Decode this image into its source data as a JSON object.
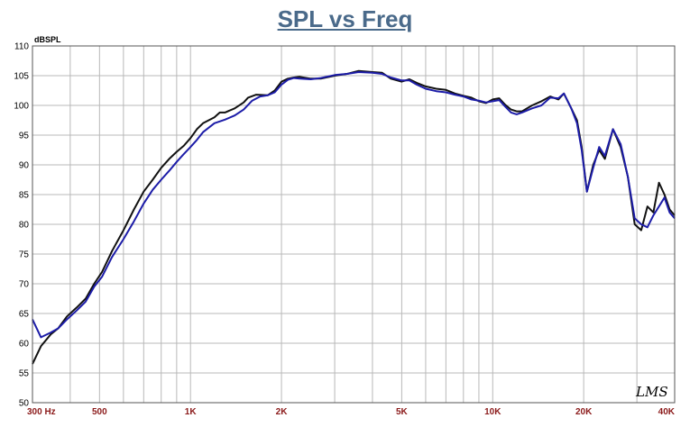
{
  "chart_data": {
    "type": "line",
    "title": "SPL vs Freq",
    "ylabel": "dBSPL",
    "xlabel": "",
    "x_scale": "log",
    "xlim": [
      300,
      40000
    ],
    "ylim": [
      50,
      110
    ],
    "grid": true,
    "yticks": [
      50,
      55,
      60,
      65,
      70,
      75,
      80,
      85,
      90,
      95,
      100,
      105,
      110
    ],
    "xtick_labels": [
      {
        "value": 300,
        "label": "300  Hz"
      },
      {
        "value": 500,
        "label": "500"
      },
      {
        "value": 1000,
        "label": "1K"
      },
      {
        "value": 2000,
        "label": "2K"
      },
      {
        "value": 5000,
        "label": "5K"
      },
      {
        "value": 10000,
        "label": "10K"
      },
      {
        "value": 20000,
        "label": "20K"
      },
      {
        "value": 40000,
        "label": "40K"
      }
    ],
    "watermark": "LMS",
    "series": [
      {
        "color": "#111111",
        "points": [
          [
            300,
            56.5
          ],
          [
            320,
            59.5
          ],
          [
            345,
            61.5
          ],
          [
            365,
            62.5
          ],
          [
            390,
            64.5
          ],
          [
            420,
            66
          ],
          [
            450,
            67.5
          ],
          [
            480,
            70
          ],
          [
            510,
            72
          ],
          [
            550,
            75.5
          ],
          [
            600,
            79
          ],
          [
            650,
            82.5
          ],
          [
            700,
            85.5
          ],
          [
            750,
            87.5
          ],
          [
            800,
            89.5
          ],
          [
            850,
            91
          ],
          [
            900,
            92.2
          ],
          [
            950,
            93.2
          ],
          [
            1000,
            94.5
          ],
          [
            1050,
            96
          ],
          [
            1100,
            97
          ],
          [
            1200,
            98
          ],
          [
            1250,
            98.8
          ],
          [
            1300,
            98.8
          ],
          [
            1400,
            99.5
          ],
          [
            1500,
            100.5
          ],
          [
            1550,
            101.3
          ],
          [
            1650,
            101.8
          ],
          [
            1800,
            101.7
          ],
          [
            1900,
            102.5
          ],
          [
            2000,
            104
          ],
          [
            2100,
            104.5
          ],
          [
            2200,
            104.7
          ],
          [
            2300,
            104.8
          ],
          [
            2500,
            104.5
          ],
          [
            2700,
            104.5
          ],
          [
            3000,
            105
          ],
          [
            3300,
            105.3
          ],
          [
            3600,
            105.8
          ],
          [
            4000,
            105.6
          ],
          [
            4300,
            105.5
          ],
          [
            4600,
            104.5
          ],
          [
            5000,
            104
          ],
          [
            5300,
            104.4
          ],
          [
            5600,
            103.8
          ],
          [
            6000,
            103.2
          ],
          [
            6500,
            102.8
          ],
          [
            7000,
            102.6
          ],
          [
            7500,
            102
          ],
          [
            8000,
            101.6
          ],
          [
            8500,
            101.3
          ],
          [
            9000,
            100.7
          ],
          [
            9500,
            100.4
          ],
          [
            10000,
            101
          ],
          [
            10500,
            101.2
          ],
          [
            11000,
            100.1
          ],
          [
            11500,
            99.3
          ],
          [
            12000,
            99
          ],
          [
            12500,
            99
          ],
          [
            13500,
            100
          ],
          [
            14500,
            100.7
          ],
          [
            15500,
            101.5
          ],
          [
            16500,
            101
          ],
          [
            17200,
            102
          ],
          [
            18200,
            99.5
          ],
          [
            19000,
            97.5
          ],
          [
            19700,
            93
          ],
          [
            20500,
            85.5
          ],
          [
            21500,
            90
          ],
          [
            22500,
            92.5
          ],
          [
            23500,
            91
          ],
          [
            25000,
            96
          ],
          [
            26500,
            93
          ],
          [
            28000,
            88
          ],
          [
            29500,
            80
          ],
          [
            31000,
            79
          ],
          [
            32500,
            83
          ],
          [
            34000,
            82
          ],
          [
            35500,
            87
          ],
          [
            37000,
            85
          ],
          [
            38500,
            82.5
          ],
          [
            40000,
            81.5
          ]
        ]
      },
      {
        "color": "#1c1ca8",
        "points": [
          [
            300,
            64
          ],
          [
            320,
            61
          ],
          [
            345,
            61.8
          ],
          [
            365,
            62.5
          ],
          [
            390,
            64
          ],
          [
            420,
            65.5
          ],
          [
            450,
            67
          ],
          [
            480,
            69.5
          ],
          [
            510,
            71.2
          ],
          [
            550,
            74.5
          ],
          [
            600,
            77.5
          ],
          [
            650,
            80.5
          ],
          [
            700,
            83.5
          ],
          [
            750,
            85.8
          ],
          [
            800,
            87.5
          ],
          [
            850,
            89
          ],
          [
            900,
            90.5
          ],
          [
            950,
            91.8
          ],
          [
            1000,
            93
          ],
          [
            1050,
            94.2
          ],
          [
            1100,
            95.5
          ],
          [
            1200,
            97
          ],
          [
            1300,
            97.6
          ],
          [
            1400,
            98.3
          ],
          [
            1500,
            99.3
          ],
          [
            1600,
            100.8
          ],
          [
            1700,
            101.5
          ],
          [
            1800,
            101.7
          ],
          [
            1900,
            102.2
          ],
          [
            2000,
            103.5
          ],
          [
            2100,
            104.3
          ],
          [
            2200,
            104.6
          ],
          [
            2300,
            104.5
          ],
          [
            2500,
            104.4
          ],
          [
            2700,
            104.6
          ],
          [
            3000,
            105.1
          ],
          [
            3300,
            105.3
          ],
          [
            3600,
            105.6
          ],
          [
            4000,
            105.5
          ],
          [
            4300,
            105.3
          ],
          [
            4600,
            104.7
          ],
          [
            5000,
            104.2
          ],
          [
            5300,
            104.2
          ],
          [
            5600,
            103.5
          ],
          [
            6000,
            102.8
          ],
          [
            6500,
            102.4
          ],
          [
            7000,
            102.2
          ],
          [
            7500,
            101.8
          ],
          [
            8000,
            101.5
          ],
          [
            8500,
            101
          ],
          [
            9000,
            100.8
          ],
          [
            9500,
            100.5
          ],
          [
            10000,
            100.7
          ],
          [
            10500,
            100.9
          ],
          [
            11000,
            99.8
          ],
          [
            11500,
            98.8
          ],
          [
            12000,
            98.5
          ],
          [
            12500,
            98.8
          ],
          [
            13500,
            99.5
          ],
          [
            14500,
            100
          ],
          [
            15500,
            101.3
          ],
          [
            16500,
            101.2
          ],
          [
            17200,
            102
          ],
          [
            18200,
            99.5
          ],
          [
            19000,
            97
          ],
          [
            19700,
            92.5
          ],
          [
            20500,
            85.5
          ],
          [
            21500,
            89.5
          ],
          [
            22500,
            93
          ],
          [
            23500,
            91.5
          ],
          [
            25000,
            96
          ],
          [
            26500,
            93.5
          ],
          [
            28000,
            88
          ],
          [
            29500,
            81
          ],
          [
            31000,
            80
          ],
          [
            32500,
            79.5
          ],
          [
            34000,
            81.5
          ],
          [
            35500,
            83
          ],
          [
            37000,
            84.5
          ],
          [
            38500,
            82
          ],
          [
            40000,
            81
          ]
        ]
      }
    ]
  }
}
